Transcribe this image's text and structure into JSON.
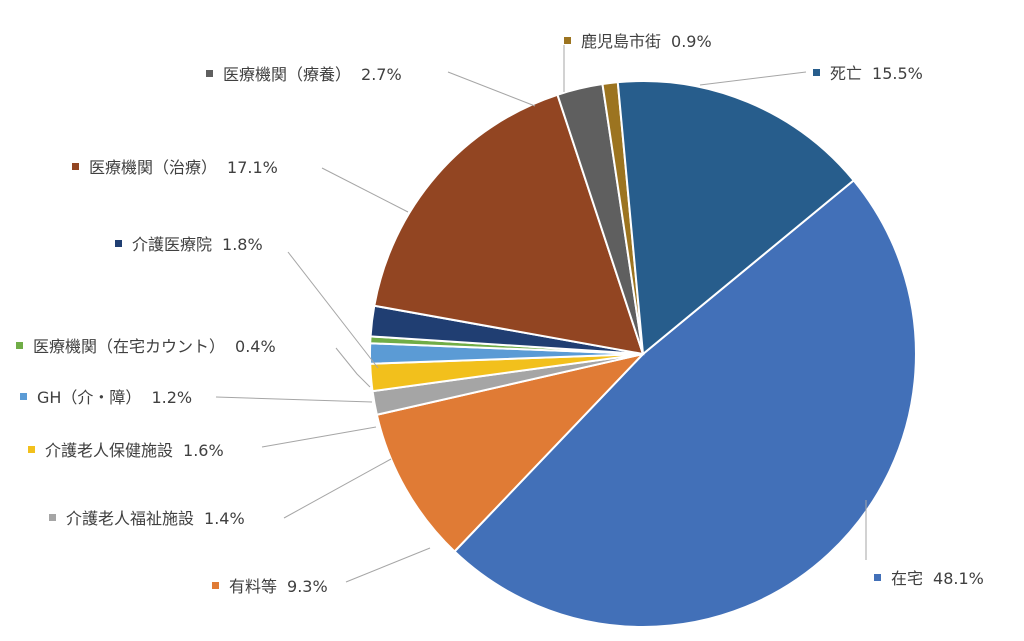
{
  "chart_data": {
    "type": "pie",
    "slices": [
      {
        "name": "在宅",
        "value": 48.1,
        "value_label": "48.1%",
        "color": "#4270b8"
      },
      {
        "name": "有料等",
        "value": 9.3,
        "value_label": "9.3%",
        "color": "#e07b35"
      },
      {
        "name": "介護老人福祉施設",
        "value": 1.4,
        "value_label": "1.4%",
        "color": "#a5a5a5"
      },
      {
        "name": "介護老人保健施設",
        "value": 1.6,
        "value_label": "1.6%",
        "color": "#f2c01c"
      },
      {
        "name": "GH（介・障）",
        "value": 1.2,
        "value_label": "1.2%",
        "color": "#5b9bd5"
      },
      {
        "name": "医療機関（在宅カウント）",
        "value": 0.4,
        "value_label": "0.4%",
        "color": "#70ad47"
      },
      {
        "name": "介護医療院",
        "value": 1.8,
        "value_label": "1.8%",
        "color": "#203e72"
      },
      {
        "name": "医療機関（治療）",
        "value": 17.1,
        "value_label": "17.1%",
        "color": "#924522"
      },
      {
        "name": "医療機関（療養）",
        "value": 2.7,
        "value_label": "2.7%",
        "color": "#5f5f5f"
      },
      {
        "name": "鹿児島市街",
        "value": 0.9,
        "value_label": "0.9%",
        "color": "#9c7420"
      },
      {
        "name": "死亡",
        "value": 15.5,
        "value_label": "15.5%",
        "color": "#275d8c"
      }
    ]
  }
}
